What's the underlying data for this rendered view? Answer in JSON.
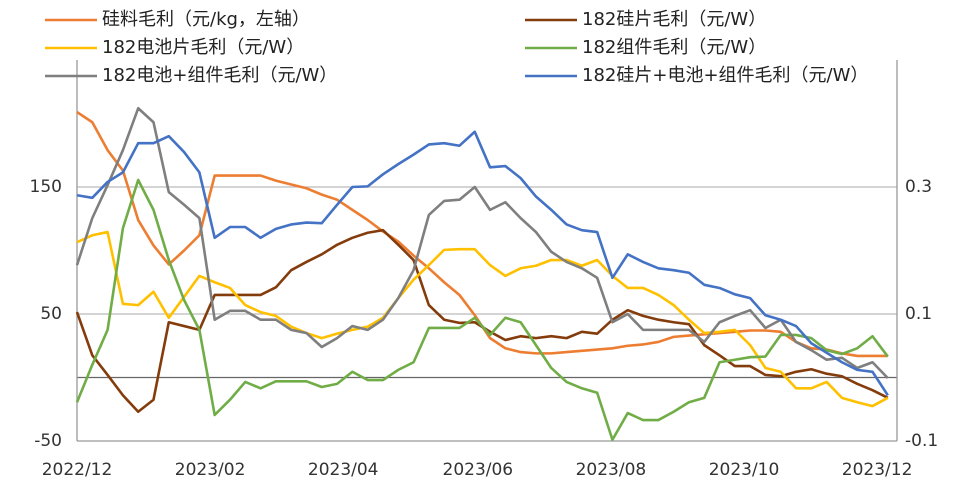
{
  "chart_data": {
    "type": "line",
    "x": [
      0,
      1,
      2,
      3,
      4,
      5,
      6,
      7,
      8,
      9,
      10,
      11,
      12,
      13,
      14,
      15,
      16,
      17,
      18,
      19,
      20,
      21,
      22,
      23,
      24,
      25,
      26,
      27,
      28,
      29,
      30,
      31,
      32,
      33,
      34,
      35,
      36,
      37,
      38,
      39,
      40,
      41,
      42,
      43,
      44,
      45,
      46,
      47,
      48,
      49,
      50,
      51,
      52,
      53
    ],
    "xlim": [
      0,
      53.6
    ],
    "xticks": [
      {
        "value": 0,
        "label": "2022/12"
      },
      {
        "value": 8.7,
        "label": "2023/02"
      },
      {
        "value": 17.4,
        "label": "2023/04"
      },
      {
        "value": 26.2,
        "label": "2023/06"
      },
      {
        "value": 34.9,
        "label": "2023/08"
      },
      {
        "value": 43.6,
        "label": "2023/10"
      },
      {
        "value": 52.3,
        "label": "2023/12"
      }
    ],
    "ylim": [
      -50,
      250
    ],
    "yticks": [
      -50,
      50,
      150
    ],
    "y2lim": [
      -0.1,
      0.5
    ],
    "y2ticks": [
      -0.1,
      0.1,
      0.3
    ],
    "grid": true,
    "series": [
      {
        "name": "硅料毛利（元/kg，左轴）",
        "color": "#ED7D31",
        "values": [
          209,
          201,
          179,
          163,
          124,
          104,
          89,
          100,
          112,
          159,
          159,
          159,
          159,
          155,
          152,
          149,
          144,
          140,
          132,
          124,
          115,
          107,
          96,
          86,
          75,
          65,
          49,
          31,
          23,
          20,
          19,
          19,
          20,
          21,
          22,
          23,
          25,
          26,
          28,
          32,
          33,
          34,
          35,
          36,
          37,
          37,
          36,
          28,
          23,
          22,
          19,
          17,
          17,
          17
        ]
      },
      {
        "name": "182硅片毛利（元/W）",
        "color": "#843C0C",
        "axis": "y2",
        "values": [
          0.103,
          0.035,
          0.004,
          -0.028,
          -0.054,
          -0.035,
          0.087,
          0.081,
          0.075,
          0.13,
          0.13,
          0.13,
          0.13,
          0.142,
          0.169,
          0.182,
          0.194,
          0.209,
          0.22,
          0.228,
          0.232,
          0.209,
          0.185,
          0.114,
          0.091,
          0.086,
          0.087,
          0.072,
          0.059,
          0.065,
          0.062,
          0.065,
          0.062,
          0.072,
          0.069,
          0.091,
          0.106,
          0.097,
          0.091,
          0.087,
          0.084,
          0.051,
          0.035,
          0.018,
          0.018,
          0.004,
          0.002,
          0.009,
          0.013,
          0.006,
          0.002,
          -0.01,
          -0.02,
          -0.032
        ]
      },
      {
        "name": "182电池片毛利（元/W）",
        "color": "#FFC000",
        "axis": "y2",
        "values": [
          0.213,
          0.224,
          0.229,
          0.116,
          0.114,
          0.135,
          0.094,
          0.127,
          0.16,
          0.15,
          0.141,
          0.114,
          0.103,
          0.097,
          0.08,
          0.07,
          0.062,
          0.069,
          0.075,
          0.08,
          0.094,
          0.125,
          0.154,
          0.177,
          0.201,
          0.202,
          0.202,
          0.177,
          0.16,
          0.172,
          0.176,
          0.185,
          0.185,
          0.176,
          0.185,
          0.16,
          0.141,
          0.141,
          0.13,
          0.114,
          0.091,
          0.07,
          0.072,
          0.075,
          0.051,
          0.015,
          0.009,
          -0.017,
          -0.017,
          -0.007,
          -0.032,
          -0.039,
          -0.045,
          -0.032
        ]
      },
      {
        "name": "182组件毛利（元/W）",
        "color": "#70AD47",
        "axis": "y2",
        "values": [
          -0.039,
          0.02,
          0.075,
          0.235,
          0.311,
          0.264,
          0.185,
          0.122,
          0.075,
          -0.059,
          -0.035,
          -0.007,
          -0.017,
          -0.006,
          -0.006,
          -0.006,
          -0.015,
          -0.01,
          0.009,
          -0.004,
          -0.004,
          0.012,
          0.024,
          0.078,
          0.078,
          0.078,
          0.094,
          0.067,
          0.094,
          0.087,
          0.051,
          0.015,
          -0.007,
          -0.017,
          -0.024,
          -0.098,
          -0.056,
          -0.067,
          -0.067,
          -0.054,
          -0.039,
          -0.032,
          0.024,
          0.028,
          0.032,
          0.033,
          0.067,
          0.067,
          0.062,
          0.043,
          0.037,
          0.046,
          0.065,
          0.033
        ]
      },
      {
        "name": "182电池+组件毛利（元/W）",
        "color": "#7F7F7F",
        "axis": "y2",
        "values": [
          0.177,
          0.251,
          0.303,
          0.358,
          0.424,
          0.402,
          0.292,
          0.272,
          0.251,
          0.091,
          0.105,
          0.105,
          0.091,
          0.091,
          0.075,
          0.07,
          0.048,
          0.062,
          0.081,
          0.075,
          0.091,
          0.125,
          0.169,
          0.256,
          0.278,
          0.28,
          0.3,
          0.264,
          0.276,
          0.251,
          0.229,
          0.198,
          0.182,
          0.172,
          0.157,
          0.087,
          0.1,
          0.075,
          0.075,
          0.075,
          0.075,
          0.056,
          0.087,
          0.097,
          0.106,
          0.078,
          0.091,
          0.056,
          0.043,
          0.028,
          0.031,
          0.015,
          0.024,
          -0.001
        ]
      },
      {
        "name": "182硅片+电池+组件毛利（元/W）",
        "color": "#4472C4",
        "axis": "y2",
        "values": [
          0.287,
          0.283,
          0.308,
          0.323,
          0.369,
          0.369,
          0.38,
          0.355,
          0.323,
          0.22,
          0.237,
          0.237,
          0.22,
          0.234,
          0.241,
          0.244,
          0.243,
          0.272,
          0.3,
          0.301,
          0.32,
          0.336,
          0.351,
          0.367,
          0.369,
          0.365,
          0.387,
          0.331,
          0.333,
          0.314,
          0.285,
          0.264,
          0.241,
          0.232,
          0.229,
          0.157,
          0.194,
          0.182,
          0.172,
          0.169,
          0.165,
          0.146,
          0.141,
          0.131,
          0.125,
          0.098,
          0.091,
          0.081,
          0.054,
          0.039,
          0.024,
          0.012,
          0.009,
          -0.028
        ]
      }
    ]
  }
}
